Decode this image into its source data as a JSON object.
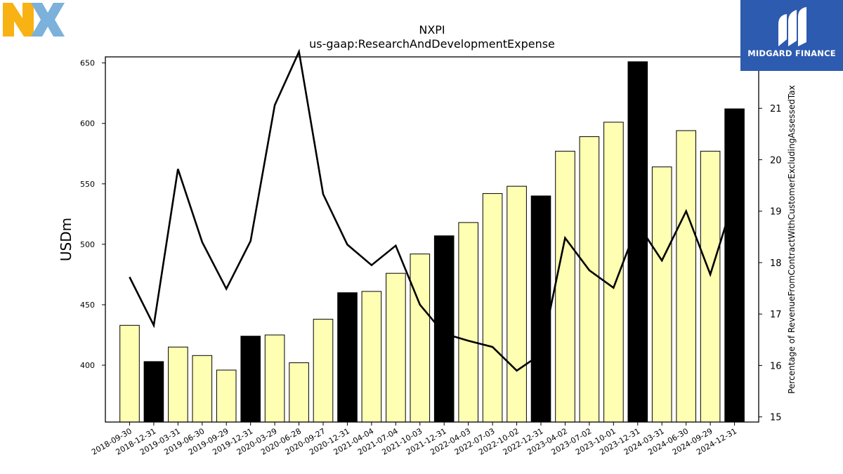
{
  "chart_data": {
    "type": "bar",
    "title": "NXPI",
    "subtitle": "us-gaap:ResearchAndDevelopmentExpense",
    "ylabel": "USDm",
    "y2label": "Percentage of RevenueFromContractWithCustomerExcludingAssessedTax",
    "ylim": [
      353,
      655
    ],
    "y2lim": [
      14.9,
      22.0
    ],
    "yticks": [
      400,
      450,
      500,
      550,
      600,
      650
    ],
    "y2ticks": [
      15,
      16,
      17,
      18,
      19,
      20,
      21
    ],
    "categories": [
      "2018-09-30",
      "2018-12-31",
      "2019-03-31",
      "2019-06-30",
      "2019-09-29",
      "2019-12-31",
      "2020-03-29",
      "2020-06-28",
      "2020-09-27",
      "2020-12-31",
      "2021-04-04",
      "2021-07-04",
      "2021-10-03",
      "2021-12-31",
      "2022-04-03",
      "2022-07-03",
      "2022-10-02",
      "2022-12-31",
      "2023-04-02",
      "2023-07-02",
      "2023-10-01",
      "2023-12-31",
      "2024-03-31",
      "2024-06-30",
      "2024-09-29",
      "2024-12-31"
    ],
    "series": [
      {
        "type": "bar",
        "values": [
          433,
          403,
          415,
          408,
          396,
          424,
          425,
          402,
          438,
          460,
          461,
          476,
          492,
          507,
          518,
          542,
          548,
          540,
          577,
          589,
          601,
          651,
          564,
          594,
          577,
          612
        ],
        "highlight": [
          false,
          true,
          false,
          false,
          false,
          true,
          false,
          false,
          false,
          true,
          false,
          false,
          false,
          true,
          false,
          false,
          false,
          true,
          false,
          false,
          false,
          true,
          false,
          false,
          false,
          true
        ],
        "color": "#ffffb3",
        "highlight_color": "#000000"
      },
      {
        "type": "line",
        "axis": "right",
        "values": [
          17.72,
          16.78,
          19.82,
          18.4,
          17.49,
          18.42,
          21.06,
          22.1,
          19.33,
          18.35,
          17.95,
          18.33,
          17.18,
          16.62,
          16.48,
          16.36,
          15.9,
          16.22,
          18.48,
          17.85,
          17.51,
          18.75,
          18.04,
          19.0,
          17.77,
          19.28
        ],
        "color": "#000000"
      }
    ]
  },
  "logos": {
    "nxp_colors": [
      "#f9b214",
      "#7bb1db",
      "#c9d200"
    ],
    "midgard_text": "MIDGARD FINANCE",
    "midgard_color": "#2d5bb0"
  }
}
